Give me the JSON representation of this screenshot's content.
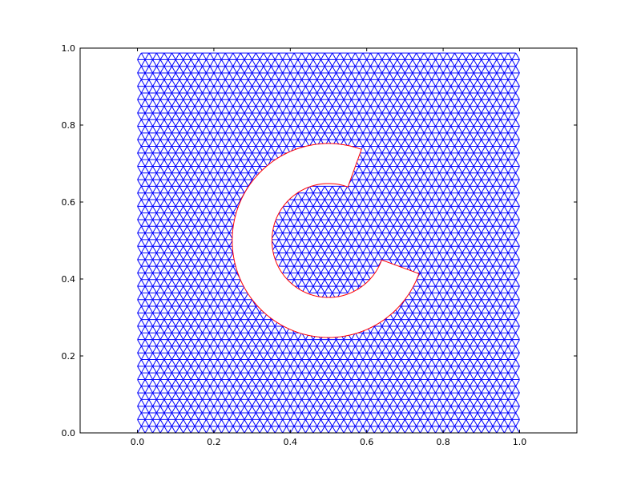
{
  "chart_data": {
    "type": "triangular-mesh",
    "title": "",
    "xlabel": "",
    "ylabel": "",
    "xlim": [
      -0.15,
      1.15
    ],
    "ylim": [
      0.0,
      1.0
    ],
    "grid": false,
    "x_ticks": [
      {
        "value": 0.0,
        "label": "0.0"
      },
      {
        "value": 0.2,
        "label": "0.2"
      },
      {
        "value": 0.4,
        "label": "0.4"
      },
      {
        "value": 0.6,
        "label": "0.6"
      },
      {
        "value": 0.8,
        "label": "0.8"
      },
      {
        "value": 1.0,
        "label": "1.0"
      }
    ],
    "y_ticks": [
      {
        "value": 0.0,
        "label": "0.0"
      },
      {
        "value": 0.2,
        "label": "0.2"
      },
      {
        "value": 0.4,
        "label": "0.4"
      },
      {
        "value": 0.6,
        "label": "0.6"
      },
      {
        "value": 0.8,
        "label": "0.8"
      },
      {
        "value": 1.0,
        "label": "1.0"
      }
    ],
    "mesh": {
      "color": "#0000ff",
      "domain_x": [
        0.0,
        1.0
      ],
      "domain_y": [
        0.0,
        0.99
      ],
      "spacing": 0.02,
      "hole": {
        "center": [
          0.5,
          0.5
        ],
        "outer_radius": 0.25,
        "inner_radius": 0.145,
        "gap_start_deg": -20,
        "gap_end_deg": 70
      }
    },
    "boundary": {
      "color": "#ff0000",
      "center": [
        0.5,
        0.5
      ],
      "outer_radius": 0.252,
      "inner_radius": 0.148,
      "gap_start_deg": -20,
      "gap_end_deg": 70
    },
    "colors": {
      "mesh": "#0000ff",
      "boundary": "#ff0000",
      "axes": "#000000",
      "background": "#ffffff"
    }
  }
}
